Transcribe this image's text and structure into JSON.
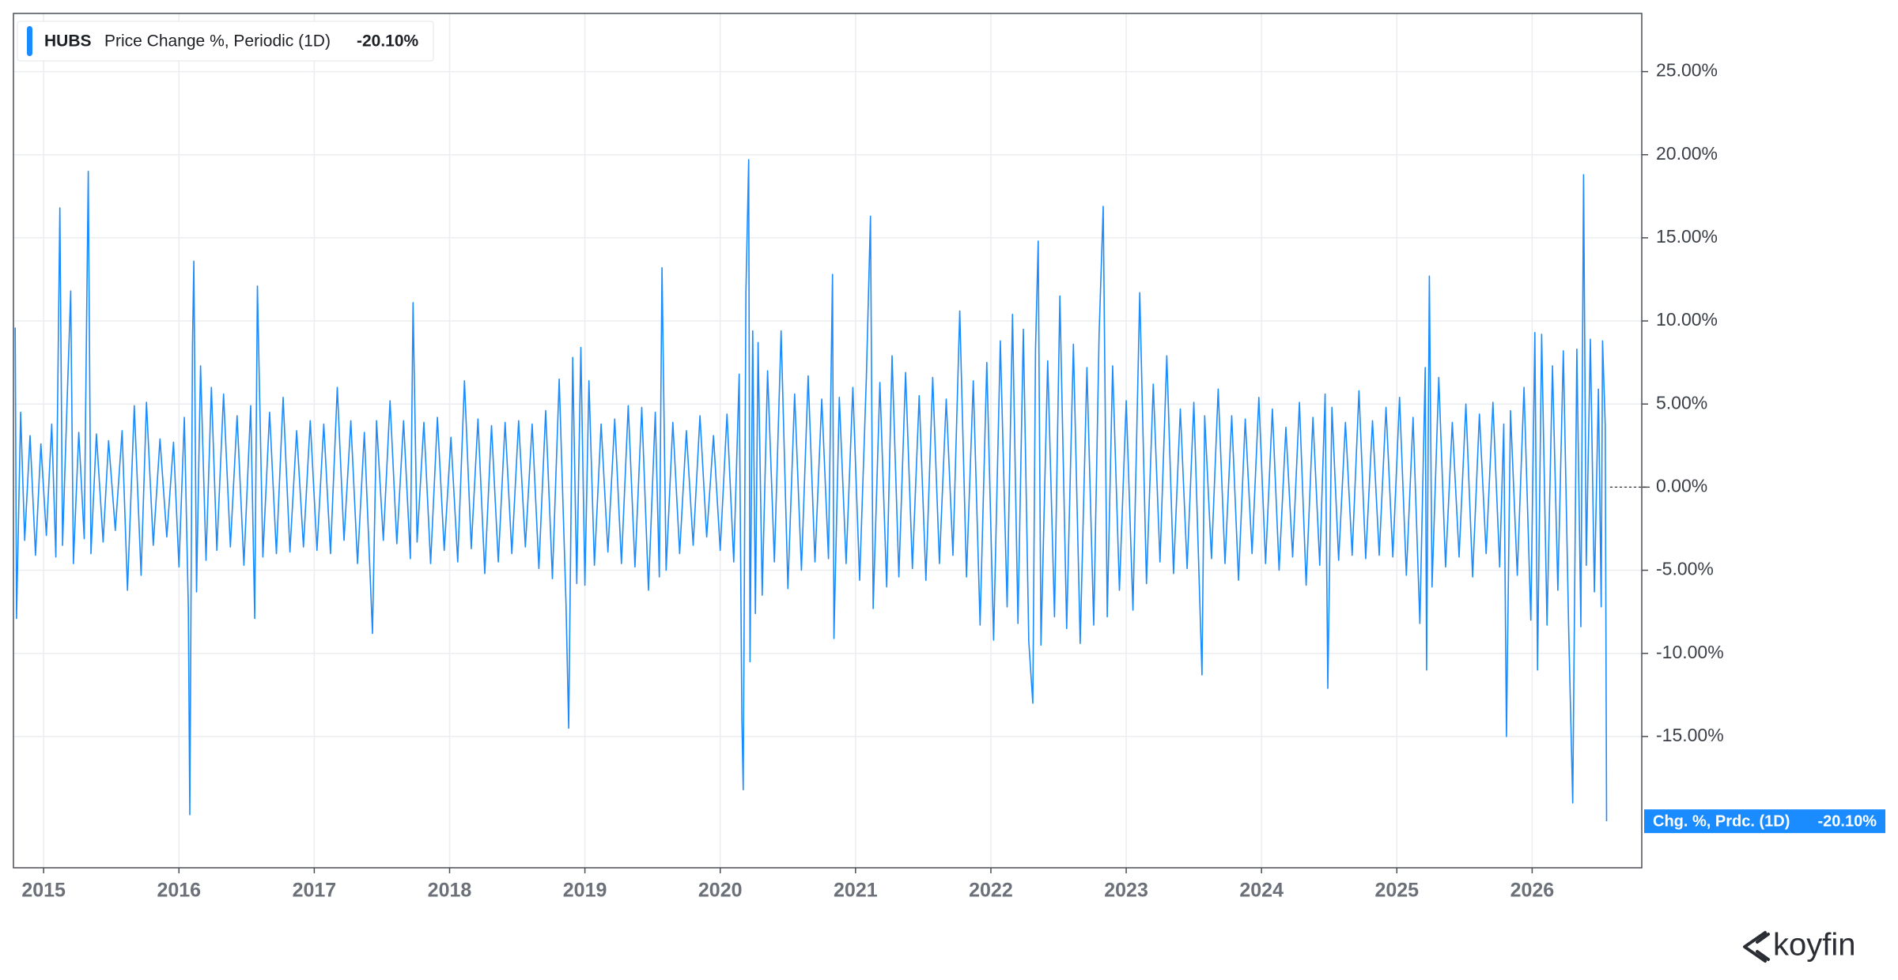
{
  "chart_data": {
    "type": "line",
    "legend": {
      "ticker": "HUBS"
    },
    "series": [
      {
        "name": "Price Change %, Periodic (1D)",
        "short_name": "Chg. %, Prdc. (1D)",
        "last_label": "-20.10%",
        "color": "#1a8cff",
        "values": [
          9.6,
          -7.9,
          4.5,
          -3.2,
          3.1,
          -4.1,
          2.6,
          -2.9,
          3.8,
          -4.2,
          16.8,
          -3.5,
          4.2,
          11.8,
          -4.6,
          3.3,
          -3.1,
          19.0,
          -4.0,
          3.2,
          -3.3,
          2.8,
          -2.6,
          3.4,
          -6.2,
          4.9,
          -5.3,
          5.1,
          -3.5,
          2.9,
          -3.0,
          2.7,
          -4.8,
          4.2,
          -7.4,
          -19.7,
          8.5,
          13.6,
          -6.3,
          7.3,
          -4.4,
          6.0,
          -3.8,
          5.6,
          -3.6,
          4.3,
          -4.7,
          4.9,
          -7.9,
          12.1,
          -4.2,
          4.5,
          -4.0,
          5.4,
          -3.9,
          3.4,
          -3.6,
          4.0,
          -3.8,
          3.8,
          -4.0,
          6.0,
          -3.2,
          4.0,
          -4.6,
          3.3,
          -8.8,
          4.0,
          -3.2,
          5.2,
          -3.4,
          4.0,
          -4.3,
          11.1,
          -3.3,
          3.9,
          -4.6,
          4.2,
          -3.8,
          3.0,
          -4.5,
          6.4,
          -3.7,
          4.1,
          -5.2,
          3.7,
          -4.5,
          3.9,
          -4.0,
          4.0,
          -3.6,
          3.8,
          -4.9,
          4.6,
          -5.5,
          6.5,
          -7.0,
          -14.5,
          7.8,
          -5.8,
          8.4,
          -5.9,
          6.4,
          -4.7,
          3.8,
          -3.9,
          4.1,
          -4.6,
          4.9,
          -4.8,
          4.8,
          -6.2,
          4.5,
          -5.4,
          13.2,
          -5.0,
          3.9,
          -4.0,
          3.4,
          -3.5,
          4.3,
          -3.0,
          3.1,
          -3.8,
          4.4,
          -4.5,
          6.8,
          -14.0,
          -18.2,
          11.7,
          19.7,
          -10.5,
          9.4,
          -7.6,
          8.7,
          -6.5,
          7.0,
          -4.5,
          9.4,
          -6.1,
          5.6,
          -5.0,
          6.7,
          -4.5,
          5.3,
          -4.3,
          12.8,
          -9.1,
          5.4,
          -4.6,
          6.0,
          -5.6,
          6.6,
          16.3,
          -7.3,
          6.3,
          -6.0,
          7.9,
          -5.4,
          6.9,
          -4.9,
          5.5,
          -5.6,
          6.6,
          -4.6,
          5.3,
          -4.1,
          10.6,
          -5.4,
          6.4,
          -8.3,
          7.5,
          -9.2,
          8.8,
          -7.2,
          10.4,
          -8.2,
          9.5,
          -9.3,
          -13.0,
          8.3,
          14.8,
          -9.5,
          7.6,
          -7.8,
          11.5,
          -8.5,
          8.6,
          -9.4,
          7.2,
          -8.3,
          9.2,
          16.9,
          -7.8,
          7.3,
          -6.2,
          5.2,
          -7.4,
          11.7,
          -5.8,
          6.2,
          -4.5,
          7.9,
          -5.2,
          4.7,
          -4.9,
          5.1,
          -11.3,
          4.3,
          -4.3,
          5.9,
          -4.6,
          4.3,
          -5.6,
          4.1,
          -4.0,
          5.4,
          -4.6,
          4.7,
          -5.0,
          3.6,
          -4.2,
          5.1,
          -5.9,
          4.2,
          -4.7,
          5.6,
          -12.1,
          4.8,
          -4.4,
          3.9,
          -4.1,
          5.8,
          -4.3,
          4.0,
          -4.1,
          4.8,
          -4.2,
          5.4,
          -5.3,
          4.2,
          -8.2,
          7.2,
          -11.0,
          12.7,
          -6.0,
          6.6,
          -4.8,
          3.9,
          -4.2,
          5.0,
          -5.4,
          4.4,
          -4.0,
          5.1,
          -4.8,
          3.8,
          -15.0,
          4.6,
          -5.3,
          6.0,
          -8.0,
          9.3,
          -11.0,
          9.2,
          -8.3,
          7.3,
          -6.2,
          8.2,
          -8.6,
          -19.0,
          8.3,
          -8.4,
          18.8,
          -4.7,
          8.9,
          -6.3,
          5.9,
          -7.2,
          8.8,
          3.7,
          -20.1
        ]
      }
    ],
    "x": [
      2014.79,
      2014.8,
      2014.83,
      2014.86,
      2014.9,
      2014.94,
      2014.98,
      2015.02,
      2015.06,
      2015.09,
      2015.12,
      2015.14,
      2015.17,
      2015.2,
      2015.22,
      2015.26,
      2015.3,
      2015.33,
      2015.35,
      2015.39,
      2015.44,
      2015.48,
      2015.53,
      2015.58,
      2015.62,
      2015.67,
      2015.72,
      2015.76,
      2015.81,
      2015.86,
      2015.91,
      2015.96,
      2016,
      2016.04,
      2016.07,
      2016.08,
      2016.1,
      2016.11,
      2016.13,
      2016.16,
      2016.2,
      2016.24,
      2016.28,
      2016.33,
      2016.38,
      2016.43,
      2016.48,
      2016.53,
      2016.56,
      2016.58,
      2016.62,
      2016.67,
      2016.72,
      2016.77,
      2016.82,
      2016.87,
      2016.92,
      2016.97,
      2017.02,
      2017.07,
      2017.12,
      2017.17,
      2017.22,
      2017.27,
      2017.32,
      2017.37,
      2017.43,
      2017.46,
      2017.51,
      2017.56,
      2017.61,
      2017.66,
      2017.71,
      2017.73,
      2017.76,
      2017.81,
      2017.86,
      2017.91,
      2017.96,
      2018.01,
      2018.06,
      2018.11,
      2018.16,
      2018.21,
      2018.26,
      2018.31,
      2018.36,
      2018.41,
      2018.46,
      2018.51,
      2018.56,
      2018.61,
      2018.66,
      2018.71,
      2018.76,
      2018.81,
      2018.86,
      2018.88,
      2018.91,
      2018.94,
      2018.97,
      2019,
      2019.03,
      2019.07,
      2019.12,
      2019.17,
      2019.22,
      2019.27,
      2019.32,
      2019.37,
      2019.42,
      2019.47,
      2019.52,
      2019.55,
      2019.57,
      2019.6,
      2019.65,
      2019.7,
      2019.75,
      2019.8,
      2019.85,
      2019.9,
      2019.95,
      2020,
      2020.05,
      2020.1,
      2020.14,
      2020.16,
      2020.17,
      2020.19,
      2020.21,
      2020.22,
      2020.24,
      2020.26,
      2020.28,
      2020.31,
      2020.35,
      2020.4,
      2020.45,
      2020.5,
      2020.55,
      2020.6,
      2020.65,
      2020.7,
      2020.75,
      2020.8,
      2020.83,
      2020.84,
      2020.88,
      2020.93,
      2020.98,
      2021.03,
      2021.08,
      2021.11,
      2021.13,
      2021.18,
      2021.23,
      2021.27,
      2021.32,
      2021.37,
      2021.42,
      2021.47,
      2021.52,
      2021.57,
      2021.62,
      2021.67,
      2021.72,
      2021.77,
      2021.82,
      2021.87,
      2021.92,
      2021.97,
      2022.02,
      2022.07,
      2022.12,
      2022.16,
      2022.2,
      2022.24,
      2022.28,
      2022.31,
      2022.33,
      2022.35,
      2022.37,
      2022.42,
      2022.47,
      2022.51,
      2022.56,
      2022.61,
      2022.66,
      2022.71,
      2022.76,
      2022.8,
      2022.83,
      2022.86,
      2022.9,
      2022.95,
      2023,
      2023.05,
      2023.1,
      2023.15,
      2023.2,
      2023.25,
      2023.3,
      2023.35,
      2023.4,
      2023.45,
      2023.5,
      2023.56,
      2023.58,
      2023.63,
      2023.68,
      2023.73,
      2023.78,
      2023.83,
      2023.88,
      2023.93,
      2023.98,
      2024.03,
      2024.08,
      2024.13,
      2024.18,
      2024.23,
      2024.28,
      2024.33,
      2024.38,
      2024.43,
      2024.47,
      2024.49,
      2024.52,
      2024.57,
      2024.62,
      2024.67,
      2024.72,
      2024.77,
      2024.82,
      2024.87,
      2024.92,
      2024.97,
      2025.02,
      2025.07,
      2025.12,
      2025.17,
      2025.21,
      2025.22,
      2025.24,
      2025.26,
      2025.31,
      2025.36,
      2025.41,
      2025.46,
      2025.51,
      2025.56,
      2025.61,
      2025.66,
      2025.71,
      2025.76,
      2025.79,
      2025.81,
      2025.84,
      2025.89,
      2025.94,
      2025.99,
      2026.02,
      2026.04,
      2026.07,
      2026.11,
      2026.15,
      2026.19,
      2026.23,
      2026.27,
      2026.3,
      2026.33,
      2026.36,
      2026.38,
      2026.4,
      2026.43,
      2026.46,
      2026.49,
      2026.51,
      2026.52,
      2026.54,
      2026.55
    ],
    "xlim": [
      2014.777,
      2026.81
    ],
    "xticks": [
      2015,
      2016,
      2017,
      2018,
      2019,
      2020,
      2021,
      2022,
      2023,
      2024,
      2025,
      2026
    ],
    "ylim": [
      -22.9,
      28.5
    ],
    "yticks": [
      {
        "value": -15,
        "label": "-15.00%"
      },
      {
        "value": -10,
        "label": "-10.00%"
      },
      {
        "value": -5,
        "label": "-5.00%"
      },
      {
        "value": 0,
        "label": "0.00%"
      },
      {
        "value": 5,
        "label": "5.00%"
      },
      {
        "value": 10,
        "label": "10.00%"
      },
      {
        "value": 15,
        "label": "15.00%"
      },
      {
        "value": 20,
        "label": "20.00%"
      },
      {
        "value": 25,
        "label": "25.00%"
      }
    ],
    "grid": true
  },
  "brand": "koyfin"
}
